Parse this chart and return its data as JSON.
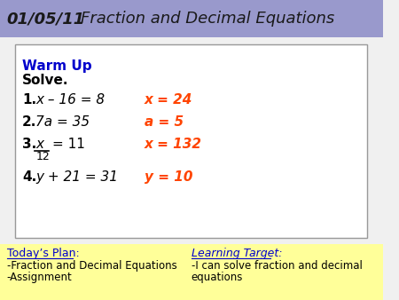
{
  "title_date": "01/05/11",
  "title_main": "Fraction and Decimal Equations",
  "header_bg": "#9999cc",
  "header_text_color": "#1a1a1a",
  "main_bg": "#f0f0f0",
  "box_bg": "#ffffff",
  "box_border": "#999999",
  "yellow_bg": "#ffff99",
  "warmup_label": "Warm Up",
  "warmup_label_color": "#0000cc",
  "solve_label": "Solve.",
  "problems": [
    {
      "num": "1.",
      "eq": "x – 16 = 8",
      "ans": "x = 24"
    },
    {
      "num": "2.",
      "eq": "7a = 35",
      "ans": "a = 5"
    },
    {
      "num": "3.",
      "eq_top": "x",
      "eq_denom": "12",
      "eq_rest": "= 11",
      "ans": "x = 132"
    },
    {
      "num": "4.",
      "eq": "y + 21 = 31",
      "ans": "y = 10"
    }
  ],
  "ans_color": "#ff4400",
  "todays_plan_label": "Today’s Plan:",
  "todays_plan_items": [
    "-Fraction and Decimal Equations",
    "-Assignment"
  ],
  "learning_target_label": "Learning Target:",
  "learning_target_line1": "-I can solve fraction and decimal",
  "learning_target_line2": "equations",
  "bottom_text_color": "#000000",
  "bottom_label_color": "#0000cc"
}
